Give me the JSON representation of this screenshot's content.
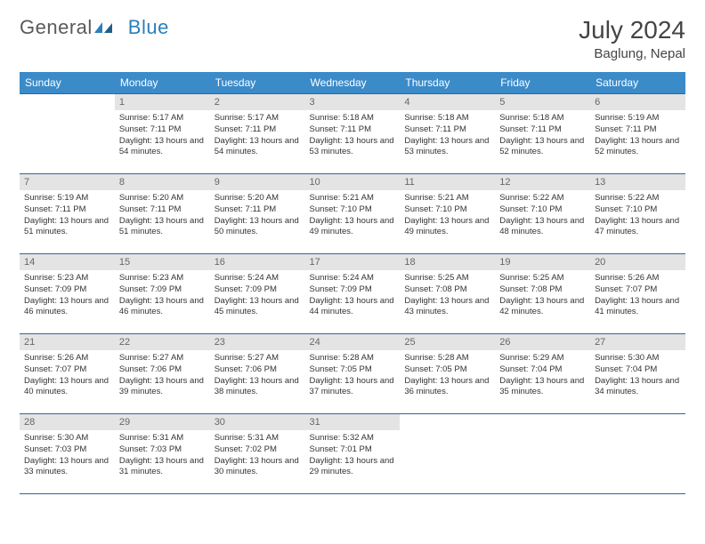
{
  "logo": {
    "part1": "General",
    "part2": "Blue"
  },
  "title": "July 2024",
  "location": "Baglung, Nepal",
  "header_bg": "#3b8bc9",
  "header_fg": "#ffffff",
  "daynum_bg": "#e4e4e4",
  "border_color": "#2a6aa0",
  "day_names": [
    "Sunday",
    "Monday",
    "Tuesday",
    "Wednesday",
    "Thursday",
    "Friday",
    "Saturday"
  ],
  "weeks": [
    [
      null,
      {
        "n": "1",
        "sr": "5:17 AM",
        "ss": "7:11 PM",
        "dl": "13 hours and 54 minutes."
      },
      {
        "n": "2",
        "sr": "5:17 AM",
        "ss": "7:11 PM",
        "dl": "13 hours and 54 minutes."
      },
      {
        "n": "3",
        "sr": "5:18 AM",
        "ss": "7:11 PM",
        "dl": "13 hours and 53 minutes."
      },
      {
        "n": "4",
        "sr": "5:18 AM",
        "ss": "7:11 PM",
        "dl": "13 hours and 53 minutes."
      },
      {
        "n": "5",
        "sr": "5:18 AM",
        "ss": "7:11 PM",
        "dl": "13 hours and 52 minutes."
      },
      {
        "n": "6",
        "sr": "5:19 AM",
        "ss": "7:11 PM",
        "dl": "13 hours and 52 minutes."
      }
    ],
    [
      {
        "n": "7",
        "sr": "5:19 AM",
        "ss": "7:11 PM",
        "dl": "13 hours and 51 minutes."
      },
      {
        "n": "8",
        "sr": "5:20 AM",
        "ss": "7:11 PM",
        "dl": "13 hours and 51 minutes."
      },
      {
        "n": "9",
        "sr": "5:20 AM",
        "ss": "7:11 PM",
        "dl": "13 hours and 50 minutes."
      },
      {
        "n": "10",
        "sr": "5:21 AM",
        "ss": "7:10 PM",
        "dl": "13 hours and 49 minutes."
      },
      {
        "n": "11",
        "sr": "5:21 AM",
        "ss": "7:10 PM",
        "dl": "13 hours and 49 minutes."
      },
      {
        "n": "12",
        "sr": "5:22 AM",
        "ss": "7:10 PM",
        "dl": "13 hours and 48 minutes."
      },
      {
        "n": "13",
        "sr": "5:22 AM",
        "ss": "7:10 PM",
        "dl": "13 hours and 47 minutes."
      }
    ],
    [
      {
        "n": "14",
        "sr": "5:23 AM",
        "ss": "7:09 PM",
        "dl": "13 hours and 46 minutes."
      },
      {
        "n": "15",
        "sr": "5:23 AM",
        "ss": "7:09 PM",
        "dl": "13 hours and 46 minutes."
      },
      {
        "n": "16",
        "sr": "5:24 AM",
        "ss": "7:09 PM",
        "dl": "13 hours and 45 minutes."
      },
      {
        "n": "17",
        "sr": "5:24 AM",
        "ss": "7:09 PM",
        "dl": "13 hours and 44 minutes."
      },
      {
        "n": "18",
        "sr": "5:25 AM",
        "ss": "7:08 PM",
        "dl": "13 hours and 43 minutes."
      },
      {
        "n": "19",
        "sr": "5:25 AM",
        "ss": "7:08 PM",
        "dl": "13 hours and 42 minutes."
      },
      {
        "n": "20",
        "sr": "5:26 AM",
        "ss": "7:07 PM",
        "dl": "13 hours and 41 minutes."
      }
    ],
    [
      {
        "n": "21",
        "sr": "5:26 AM",
        "ss": "7:07 PM",
        "dl": "13 hours and 40 minutes."
      },
      {
        "n": "22",
        "sr": "5:27 AM",
        "ss": "7:06 PM",
        "dl": "13 hours and 39 minutes."
      },
      {
        "n": "23",
        "sr": "5:27 AM",
        "ss": "7:06 PM",
        "dl": "13 hours and 38 minutes."
      },
      {
        "n": "24",
        "sr": "5:28 AM",
        "ss": "7:05 PM",
        "dl": "13 hours and 37 minutes."
      },
      {
        "n": "25",
        "sr": "5:28 AM",
        "ss": "7:05 PM",
        "dl": "13 hours and 36 minutes."
      },
      {
        "n": "26",
        "sr": "5:29 AM",
        "ss": "7:04 PM",
        "dl": "13 hours and 35 minutes."
      },
      {
        "n": "27",
        "sr": "5:30 AM",
        "ss": "7:04 PM",
        "dl": "13 hours and 34 minutes."
      }
    ],
    [
      {
        "n": "28",
        "sr": "5:30 AM",
        "ss": "7:03 PM",
        "dl": "13 hours and 33 minutes."
      },
      {
        "n": "29",
        "sr": "5:31 AM",
        "ss": "7:03 PM",
        "dl": "13 hours and 31 minutes."
      },
      {
        "n": "30",
        "sr": "5:31 AM",
        "ss": "7:02 PM",
        "dl": "13 hours and 30 minutes."
      },
      {
        "n": "31",
        "sr": "5:32 AM",
        "ss": "7:01 PM",
        "dl": "13 hours and 29 minutes."
      },
      null,
      null,
      null
    ]
  ],
  "labels": {
    "sunrise": "Sunrise:",
    "sunset": "Sunset:",
    "daylight": "Daylight:"
  }
}
